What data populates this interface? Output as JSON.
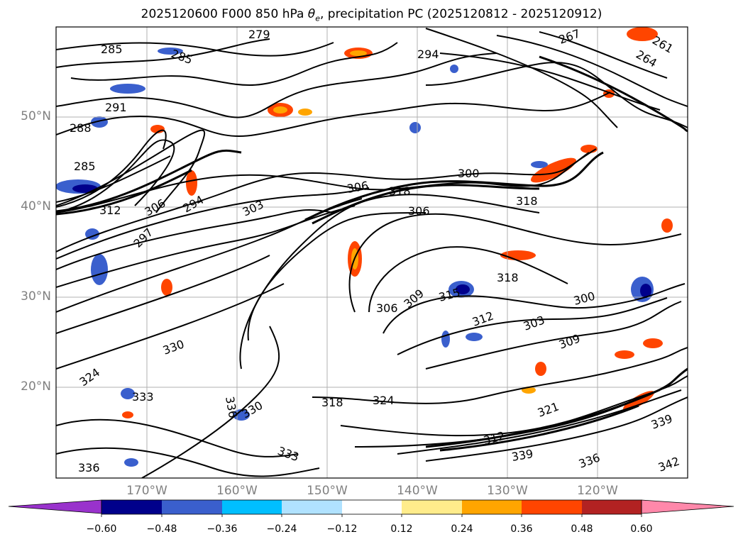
{
  "title_prefix": "2025120600 F000 850 hPa ",
  "title_symbol": "θ",
  "title_subscript": "e",
  "title_suffix": ", precipitation PC (2025120812 - 2025120912)",
  "lat_labels": [
    "50°N",
    "40°N",
    "30°N",
    "20°N"
  ],
  "lon_labels": [
    "170°W",
    "160°W",
    "150°W",
    "140°W",
    "130°W",
    "120°W"
  ],
  "contour_labels": [
    "285",
    "285",
    "279",
    "294",
    "267",
    "261",
    "264",
    "291",
    "288",
    "285",
    "300",
    "318",
    "306",
    "312",
    "306",
    "294",
    "303",
    "297",
    "318",
    "306",
    "318",
    "315",
    "309",
    "306",
    "312",
    "303",
    "300",
    "309",
    "330",
    "324",
    "333",
    "336",
    "339",
    "342",
    "339",
    "336",
    "321",
    "318",
    "312",
    "324",
    "330",
    "333",
    "336"
  ],
  "colorbar": {
    "ticks": [
      "−0.60",
      "−0.48",
      "−0.36",
      "−0.24",
      "−0.12",
      "0.12",
      "0.24",
      "0.36",
      "0.48",
      "0.60"
    ],
    "colors": [
      "#9932cc",
      "#00008b",
      "#3a5fcd",
      "#00bfff",
      "#b0e2ff",
      "#ffffff",
      "#ffec8b",
      "#ffa500",
      "#ff4500",
      "#b22222",
      "#ff88aa"
    ]
  }
}
